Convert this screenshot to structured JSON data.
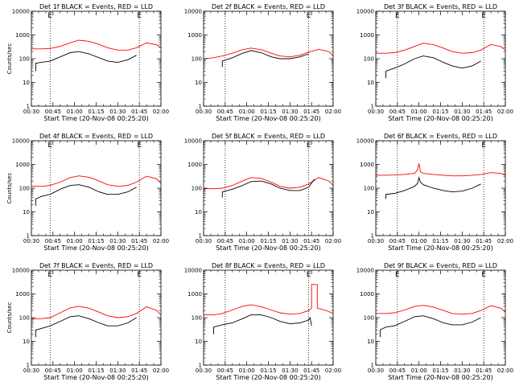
{
  "chart_data": [
    {
      "type": "line",
      "title": "Det 1f BLACK = Events, RED = LLD",
      "xlabel": "Start Time (20-Nov-08 00:25:20)",
      "ylabel": "Counts/sec",
      "y_scale": "log",
      "ylim": [
        1,
        10000
      ],
      "xlim": [
        "00:30",
        "02:00"
      ],
      "x_ticks": [
        "00:30",
        "00:45",
        "01:00",
        "01:15",
        "01:30",
        "01:45",
        "02:00"
      ],
      "y_ticks": [
        "1",
        "10",
        "100",
        "1000",
        "10000"
      ],
      "event_markers": [
        "00:43",
        "01:45"
      ],
      "marker_labels": [
        "E",
        "E"
      ],
      "series": [
        {
          "color": "#ff0000",
          "x": [
            "00:30",
            "00:37",
            "00:43",
            "00:50",
            "00:57",
            "01:03",
            "01:10",
            "01:17",
            "01:23",
            "01:30",
            "01:37",
            "01:43",
            "01:50",
            "01:57",
            "02:00"
          ],
          "y": [
            260,
            260,
            270,
            330,
            470,
            600,
            540,
            400,
            290,
            230,
            230,
            290,
            460,
            390,
            290
          ]
        },
        {
          "color": "#000000",
          "x": [
            "00:33",
            "00:33",
            "00:37",
            "00:43",
            "00:50",
            "00:57",
            "01:03",
            "01:10",
            "01:17",
            "01:23",
            "01:30",
            "01:37",
            "01:43"
          ],
          "y": [
            30,
            65,
            70,
            80,
            120,
            180,
            200,
            160,
            110,
            80,
            70,
            90,
            140
          ]
        }
      ]
    },
    {
      "type": "line",
      "title": "Det 2f BLACK = Events, RED = LLD",
      "xlabel": "Start Time (20-Nov-08 00:25:20)",
      "ylabel": "",
      "y_scale": "log",
      "ylim": [
        1,
        10000
      ],
      "xlim": [
        "00:30",
        "02:00"
      ],
      "x_ticks": [
        "00:30",
        "00:45",
        "01:00",
        "01:15",
        "01:30",
        "01:45",
        "02:00"
      ],
      "y_ticks": [
        "1",
        "10",
        "100",
        "1000",
        "10000"
      ],
      "event_markers": [
        "00:45",
        "01:43"
      ],
      "marker_labels": [
        "",
        "E"
      ],
      "series": [
        {
          "color": "#ff0000",
          "x": [
            "00:30",
            "00:37",
            "00:43",
            "00:50",
            "00:57",
            "01:03",
            "01:10",
            "01:17",
            "01:23",
            "01:30",
            "01:37",
            "01:43",
            "01:50",
            "01:57",
            "02:00"
          ],
          "y": [
            100,
            110,
            130,
            170,
            240,
            280,
            240,
            170,
            130,
            120,
            140,
            190,
            250,
            200,
            130
          ]
        },
        {
          "color": "#000000",
          "x": [
            "00:43",
            "00:43",
            "00:50",
            "00:57",
            "01:03",
            "01:10",
            "01:17",
            "01:23",
            "01:30",
            "01:37",
            "01:43"
          ],
          "y": [
            45,
            80,
            110,
            170,
            220,
            180,
            120,
            100,
            100,
            120,
            160
          ]
        }
      ]
    },
    {
      "type": "line",
      "title": "Det 3f BLACK = Events, RED = LLD",
      "xlabel": "Start Time (20-Nov-08 00:25:20)",
      "ylabel": "",
      "y_scale": "log",
      "ylim": [
        1,
        10000
      ],
      "xlim": [
        "00:30",
        "02:00"
      ],
      "x_ticks": [
        "00:30",
        "00:45",
        "01:00",
        "01:15",
        "01:30",
        "01:45",
        "02:00"
      ],
      "y_ticks": [
        "1",
        "10",
        "100",
        "1000",
        "10000"
      ],
      "event_markers": [
        "00:45",
        "01:45"
      ],
      "marker_labels": [
        "E",
        "E"
      ],
      "series": [
        {
          "color": "#ff0000",
          "x": [
            "00:30",
            "00:37",
            "00:43",
            "00:50",
            "00:57",
            "01:03",
            "01:10",
            "01:17",
            "01:23",
            "01:30",
            "01:37",
            "01:43",
            "01:50",
            "01:57",
            "02:00"
          ],
          "y": [
            170,
            170,
            180,
            230,
            330,
            450,
            390,
            280,
            200,
            170,
            180,
            230,
            400,
            320,
            230
          ]
        },
        {
          "color": "#000000",
          "x": [
            "00:37",
            "00:37",
            "00:43",
            "00:50",
            "00:57",
            "01:03",
            "01:10",
            "01:17",
            "01:23",
            "01:30",
            "01:37",
            "01:43"
          ],
          "y": [
            15,
            30,
            40,
            60,
            100,
            130,
            110,
            70,
            50,
            40,
            50,
            80
          ]
        }
      ]
    },
    {
      "type": "line",
      "title": "Det 4f BLACK = Events, RED = LLD",
      "xlabel": "Start Time (20-Nov-08 00:25:20)",
      "ylabel": "Counts/sec",
      "y_scale": "log",
      "ylim": [
        1,
        10000
      ],
      "xlim": [
        "00:30",
        "02:00"
      ],
      "x_ticks": [
        "00:30",
        "00:45",
        "01:00",
        "01:15",
        "01:30",
        "01:45",
        "02:00"
      ],
      "y_ticks": [
        "1",
        "10",
        "100",
        "1000",
        "10000"
      ],
      "event_markers": [
        "00:43",
        "01:45"
      ],
      "marker_labels": [
        "E",
        "E"
      ],
      "series": [
        {
          "color": "#ff0000",
          "x": [
            "00:30",
            "00:37",
            "00:43",
            "00:50",
            "00:57",
            "01:03",
            "01:10",
            "01:17",
            "01:23",
            "01:30",
            "01:37",
            "01:43",
            "01:50",
            "01:57",
            "02:00"
          ],
          "y": [
            120,
            120,
            130,
            180,
            280,
            330,
            290,
            200,
            140,
            120,
            130,
            180,
            320,
            250,
            160
          ]
        },
        {
          "color": "#000000",
          "x": [
            "00:33",
            "00:33",
            "00:37",
            "00:43",
            "00:50",
            "00:57",
            "01:03",
            "01:10",
            "01:17",
            "01:23",
            "01:30",
            "01:37",
            "01:43"
          ],
          "y": [
            18,
            35,
            45,
            55,
            90,
            130,
            140,
            110,
            70,
            55,
            55,
            70,
            110
          ]
        }
      ]
    },
    {
      "type": "line",
      "title": "Det 5f BLACK = Events, RED = LLD",
      "xlabel": "Start Time (20-Nov-08 00:25:20)",
      "ylabel": "",
      "y_scale": "log",
      "ylim": [
        1,
        10000
      ],
      "xlim": [
        "00:30",
        "02:00"
      ],
      "x_ticks": [
        "00:30",
        "00:45",
        "01:00",
        "01:15",
        "01:30",
        "01:45",
        "02:00"
      ],
      "y_ticks": [
        "1",
        "10",
        "100",
        "1000",
        "10000"
      ],
      "event_markers": [
        "00:45",
        "01:43"
      ],
      "marker_labels": [
        "",
        "E"
      ],
      "series": [
        {
          "color": "#ff0000",
          "x": [
            "00:30",
            "00:37",
            "00:43",
            "00:50",
            "00:57",
            "01:03",
            "01:10",
            "01:17",
            "01:23",
            "01:30",
            "01:37",
            "01:43",
            "01:50",
            "01:57",
            "02:00"
          ],
          "y": [
            95,
            95,
            100,
            130,
            200,
            280,
            260,
            180,
            120,
            100,
            110,
            150,
            280,
            200,
            130
          ]
        },
        {
          "color": "#000000",
          "x": [
            "00:43",
            "00:43",
            "00:50",
            "00:57",
            "01:03",
            "01:10",
            "01:17",
            "01:23",
            "01:30",
            "01:37",
            "01:43",
            "01:47"
          ],
          "y": [
            40,
            70,
            90,
            130,
            190,
            200,
            150,
            100,
            80,
            80,
            110,
            240
          ]
        }
      ]
    },
    {
      "type": "line",
      "title": "Det 6f BLACK = Events, RED = LLD",
      "xlabel": "Start Time (20-Nov-08 00:25:20)",
      "ylabel": "",
      "y_scale": "log",
      "ylim": [
        1,
        10000
      ],
      "xlim": [
        "00:30",
        "02:00"
      ],
      "x_ticks": [
        "00:30",
        "00:45",
        "01:00",
        "01:15",
        "01:30",
        "01:45",
        "02:00"
      ],
      "y_ticks": [
        "1",
        "10",
        "100",
        "1000",
        "10000"
      ],
      "event_markers": [
        "00:45",
        "01:45"
      ],
      "marker_labels": [
        "",
        "E"
      ],
      "series": [
        {
          "color": "#ff0000",
          "x": [
            "00:30",
            "00:37",
            "00:43",
            "00:50",
            "00:57",
            "00:59",
            "01:00",
            "01:01",
            "01:03",
            "01:10",
            "01:17",
            "01:23",
            "01:30",
            "01:37",
            "01:43",
            "01:50",
            "01:57",
            "02:00"
          ],
          "y": [
            350,
            350,
            360,
            380,
            420,
            600,
            1100,
            500,
            420,
            380,
            350,
            330,
            330,
            350,
            380,
            450,
            420,
            350
          ]
        },
        {
          "color": "#000000",
          "x": [
            "00:37",
            "00:37",
            "00:43",
            "00:50",
            "00:57",
            "00:59",
            "01:00",
            "01:01",
            "01:03",
            "01:10",
            "01:17",
            "01:23",
            "01:30",
            "01:37",
            "01:43"
          ],
          "y": [
            35,
            55,
            60,
            80,
            120,
            160,
            280,
            180,
            140,
            100,
            80,
            70,
            75,
            100,
            150
          ]
        }
      ]
    },
    {
      "type": "line",
      "title": "Det 7f BLACK = Events, RED = LLD",
      "xlabel": "Start Time (20-Nov-08 00:25:20)",
      "ylabel": "Counts/sec",
      "y_scale": "log",
      "ylim": [
        1,
        10000
      ],
      "xlim": [
        "00:30",
        "02:00"
      ],
      "x_ticks": [
        "00:30",
        "00:45",
        "01:00",
        "01:15",
        "01:30",
        "01:45",
        "02:00"
      ],
      "y_ticks": [
        "1",
        "10",
        "100",
        "1000",
        "10000"
      ],
      "event_markers": [
        "00:43",
        "01:45"
      ],
      "marker_labels": [
        "E",
        "E"
      ],
      "series": [
        {
          "color": "#ff0000",
          "x": [
            "00:30",
            "00:37",
            "00:43",
            "00:50",
            "00:57",
            "01:03",
            "01:10",
            "01:17",
            "01:23",
            "01:30",
            "01:37",
            "01:43",
            "01:50",
            "01:57",
            "02:00"
          ],
          "y": [
            90,
            90,
            100,
            160,
            260,
            300,
            250,
            170,
            120,
            100,
            110,
            150,
            290,
            200,
            130
          ]
        },
        {
          "color": "#000000",
          "x": [
            "00:33",
            "00:33",
            "00:37",
            "00:43",
            "00:50",
            "00:57",
            "01:03",
            "01:10",
            "01:17",
            "01:23",
            "01:30",
            "01:37",
            "01:43"
          ],
          "y": [
            15,
            30,
            35,
            45,
            70,
            110,
            120,
            90,
            60,
            45,
            45,
            60,
            100
          ]
        }
      ]
    },
    {
      "type": "line",
      "title": "Det 8f BLACK = Events, RED = LLD",
      "xlabel": "Start Time (20-Nov-08 00:25:20)",
      "ylabel": "",
      "y_scale": "log",
      "ylim": [
        1,
        10000
      ],
      "xlim": [
        "00:30",
        "02:00"
      ],
      "x_ticks": [
        "00:30",
        "00:45",
        "01:00",
        "01:15",
        "01:30",
        "01:45",
        "02:00"
      ],
      "y_ticks": [
        "1",
        "10",
        "100",
        "1000",
        "10000"
      ],
      "event_markers": [
        "00:45",
        "01:43"
      ],
      "marker_labels": [
        "",
        "E"
      ],
      "series": [
        {
          "color": "#ff0000",
          "x": [
            "00:30",
            "00:37",
            "00:43",
            "00:50",
            "00:57",
            "01:03",
            "01:10",
            "01:17",
            "01:23",
            "01:30",
            "01:37",
            "01:43",
            "01:45",
            "01:45",
            "01:49",
            "01:49",
            "01:53",
            "01:57",
            "02:00"
          ],
          "y": [
            130,
            130,
            150,
            210,
            300,
            350,
            290,
            210,
            160,
            140,
            150,
            200,
            250,
            2500,
            2500,
            250,
            220,
            180,
            150
          ]
        },
        {
          "color": "#000000",
          "x": [
            "00:37",
            "00:37",
            "00:43",
            "00:50",
            "00:57",
            "01:03",
            "01:10",
            "01:17",
            "01:23",
            "01:30",
            "01:37",
            "01:43",
            "01:44",
            "01:45"
          ],
          "y": [
            20,
            40,
            50,
            60,
            90,
            130,
            130,
            100,
            70,
            55,
            60,
            80,
            100,
            45
          ]
        }
      ]
    },
    {
      "type": "line",
      "title": "Det 9f BLACK = Events, RED = LLD",
      "xlabel": "Start Time (20-Nov-08 00:25:20)",
      "ylabel": "",
      "y_scale": "log",
      "ylim": [
        1,
        10000
      ],
      "xlim": [
        "00:30",
        "02:00"
      ],
      "x_ticks": [
        "00:30",
        "00:45",
        "01:00",
        "01:15",
        "01:30",
        "01:45",
        "02:00"
      ],
      "y_ticks": [
        "1",
        "10",
        "100",
        "1000",
        "10000"
      ],
      "event_markers": [
        "00:45",
        "01:45"
      ],
      "marker_labels": [
        "E",
        "E"
      ],
      "series": [
        {
          "color": "#ff0000",
          "x": [
            "00:30",
            "00:37",
            "00:43",
            "00:50",
            "00:57",
            "01:03",
            "01:10",
            "01:17",
            "01:23",
            "01:30",
            "01:37",
            "01:43",
            "01:50",
            "01:57",
            "02:00"
          ],
          "y": [
            150,
            150,
            160,
            210,
            300,
            330,
            280,
            200,
            150,
            140,
            150,
            200,
            320,
            250,
            170
          ]
        },
        {
          "color": "#000000",
          "x": [
            "00:33",
            "00:33",
            "00:37",
            "00:43",
            "00:50",
            "00:57",
            "01:03",
            "01:10",
            "01:17",
            "01:23",
            "01:30",
            "01:37",
            "01:43"
          ],
          "y": [
            15,
            30,
            40,
            45,
            70,
            110,
            120,
            90,
            60,
            50,
            50,
            65,
            100
          ]
        }
      ]
    }
  ]
}
